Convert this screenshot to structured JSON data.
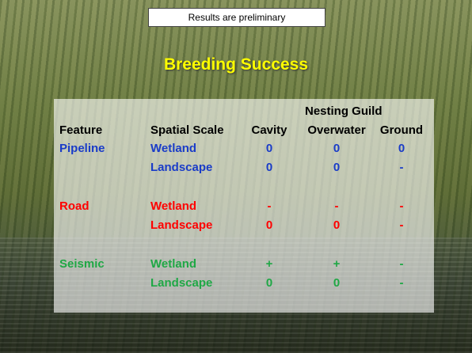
{
  "header": {
    "banner": "Results are preliminary",
    "title": "Breeding Success"
  },
  "table": {
    "group_header": "Nesting Guild",
    "columns": [
      "Feature",
      "Spatial Scale",
      "Cavity",
      "Overwater",
      "Ground"
    ],
    "groups": [
      {
        "feature": "Pipeline",
        "color": "#1a3cc8",
        "rows": [
          [
            "Wetland",
            "0",
            "0",
            "0"
          ],
          [
            "Landscape",
            "0",
            "0",
            "-"
          ]
        ]
      },
      {
        "feature": "Road",
        "color": "#ff0000",
        "rows": [
          [
            "Wetland",
            "-",
            "-",
            "-"
          ],
          [
            "Landscape",
            "0",
            "0",
            "-"
          ]
        ]
      },
      {
        "feature": "Seismic",
        "color": "#1fa845",
        "rows": [
          [
            "Wetland",
            "+",
            "+",
            "-"
          ],
          [
            "Landscape",
            "0",
            "0",
            "-"
          ]
        ]
      }
    ]
  }
}
